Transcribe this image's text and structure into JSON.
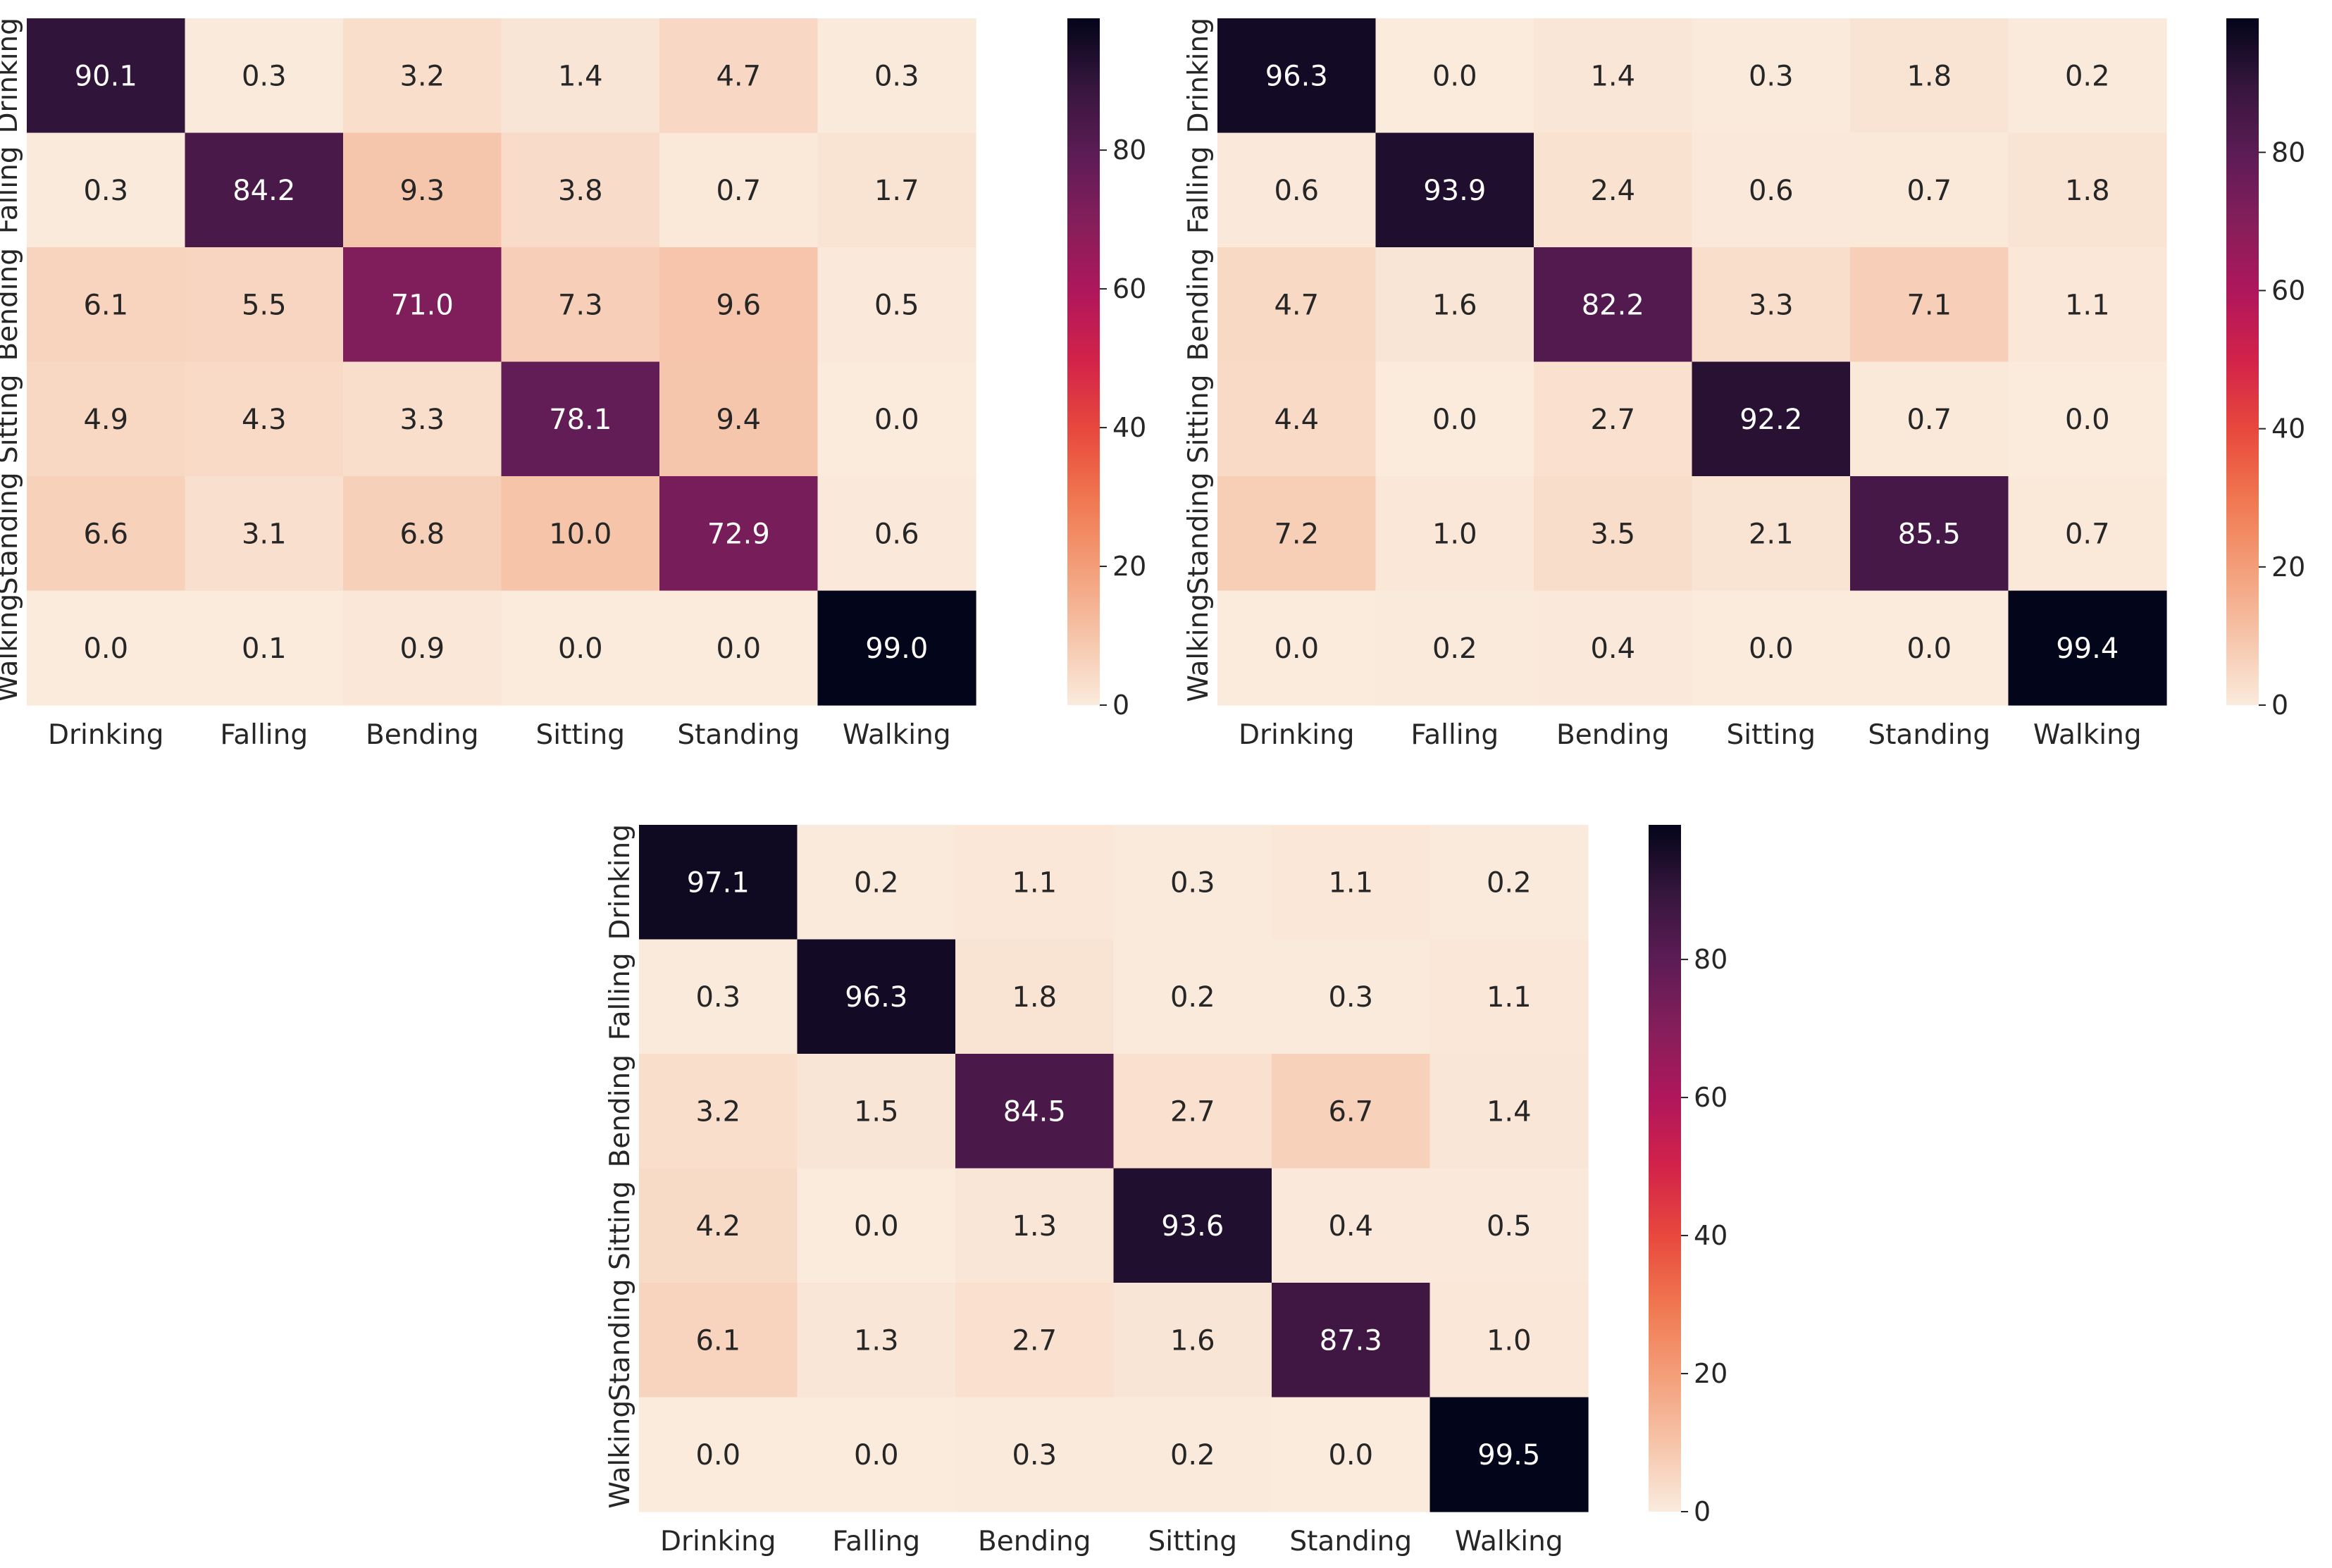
{
  "chart_data": [
    {
      "type": "heatmap",
      "title": "",
      "xlabel": "",
      "ylabel": "",
      "x_categories": [
        "Drinking",
        "Falling",
        "Bending",
        "Sitting",
        "Standing",
        "Walking"
      ],
      "y_categories": [
        "Drinking",
        "Falling",
        "Bending",
        "Sitting",
        "Standing",
        "Walking"
      ],
      "values": [
        [
          90.1,
          0.3,
          3.2,
          1.4,
          4.7,
          0.3
        ],
        [
          0.3,
          84.2,
          9.3,
          3.8,
          0.7,
          1.7
        ],
        [
          6.1,
          5.5,
          71.0,
          7.3,
          9.6,
          0.5
        ],
        [
          4.9,
          4.3,
          3.3,
          78.1,
          9.4,
          0.0
        ],
        [
          6.6,
          3.1,
          6.8,
          10.0,
          72.9,
          0.6
        ],
        [
          0.0,
          0.1,
          0.9,
          0.0,
          0.0,
          99.0
        ]
      ],
      "colorbar": {
        "range": [
          0,
          99.0
        ],
        "ticks": [
          "0",
          "20",
          "40",
          "60",
          "80"
        ],
        "colormap": "rocket_r"
      }
    },
    {
      "type": "heatmap",
      "title": "",
      "xlabel": "",
      "ylabel": "",
      "x_categories": [
        "Drinking",
        "Falling",
        "Bending",
        "Sitting",
        "Standing",
        "Walking"
      ],
      "y_categories": [
        "Drinking",
        "Falling",
        "Bending",
        "Sitting",
        "Standing",
        "Walking"
      ],
      "values": [
        [
          96.3,
          0.0,
          1.4,
          0.3,
          1.8,
          0.2
        ],
        [
          0.6,
          93.9,
          2.4,
          0.6,
          0.7,
          1.8
        ],
        [
          4.7,
          1.6,
          82.2,
          3.3,
          7.1,
          1.1
        ],
        [
          4.4,
          0.0,
          2.7,
          92.2,
          0.7,
          0.0
        ],
        [
          7.2,
          1.0,
          3.5,
          2.1,
          85.5,
          0.7
        ],
        [
          0.0,
          0.2,
          0.4,
          0.0,
          0.0,
          99.4
        ]
      ],
      "colorbar": {
        "range": [
          0,
          99.4
        ],
        "ticks": [
          "0",
          "20",
          "40",
          "60",
          "80"
        ],
        "colormap": "rocket_r"
      }
    },
    {
      "type": "heatmap",
      "title": "",
      "xlabel": "",
      "ylabel": "",
      "x_categories": [
        "Drinking",
        "Falling",
        "Bending",
        "Sitting",
        "Standing",
        "Walking"
      ],
      "y_categories": [
        "Drinking",
        "Falling",
        "Bending",
        "Sitting",
        "Standing",
        "Walking"
      ],
      "values": [
        [
          97.1,
          0.2,
          1.1,
          0.3,
          1.1,
          0.2
        ],
        [
          0.3,
          96.3,
          1.8,
          0.2,
          0.3,
          1.1
        ],
        [
          3.2,
          1.5,
          84.5,
          2.7,
          6.7,
          1.4
        ],
        [
          4.2,
          0.0,
          1.3,
          93.6,
          0.4,
          0.5
        ],
        [
          6.1,
          1.3,
          2.7,
          1.6,
          87.3,
          1.0
        ],
        [
          0.0,
          0.0,
          0.3,
          0.2,
          0.0,
          99.5
        ]
      ],
      "colorbar": {
        "range": [
          0,
          99.5
        ],
        "ticks": [
          "0",
          "20",
          "40",
          "60",
          "80"
        ],
        "colormap": "rocket_r"
      }
    }
  ]
}
